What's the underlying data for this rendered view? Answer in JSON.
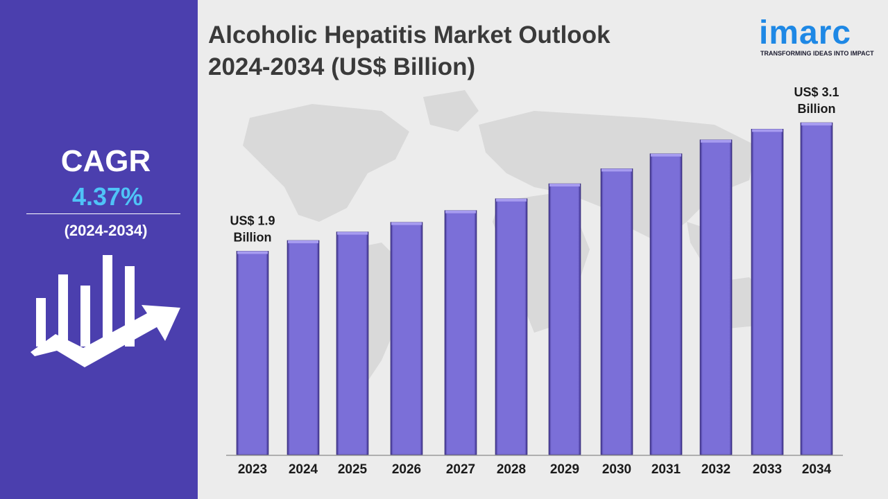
{
  "header": {
    "title_line1": "Alcoholic Hepatitis Market Outlook",
    "title_line2": "2024-2034 (US$ Billion)"
  },
  "logo": {
    "word": "imarc",
    "tagline": "TRANSFORMING IDEAS INTO IMPACT"
  },
  "sidebar": {
    "cagr_label": "CAGR",
    "cagr_value": "4.37%",
    "cagr_period": "(2024-2034)",
    "icon": "bar-growth-arrow-icon"
  },
  "colors": {
    "panel": "#4b3fae",
    "bar": "#7b6fd8",
    "bar_edge": "#3b2f86",
    "cagr_value": "#4fc3f7",
    "logo": "#1e88e5"
  },
  "chart_data": {
    "type": "bar",
    "title": "Alcoholic Hepatitis Market Outlook 2024-2034 (US$ Billion)",
    "categories": [
      "2023",
      "2024",
      "2025",
      "2026",
      "2027",
      "2028",
      "2029",
      "2030",
      "2031",
      "2032",
      "2033",
      "2034"
    ],
    "values": [
      1.9,
      2.0,
      2.08,
      2.17,
      2.28,
      2.39,
      2.53,
      2.67,
      2.81,
      2.94,
      3.04,
      3.1
    ],
    "annotations": [
      {
        "category": "2023",
        "line1": "US$ 1.9",
        "line2": "Billion"
      },
      {
        "category": "2034",
        "line1": "US$ 3.1",
        "line2": "Billion"
      }
    ],
    "ylim": [
      0,
      3.1
    ],
    "grid": false
  }
}
